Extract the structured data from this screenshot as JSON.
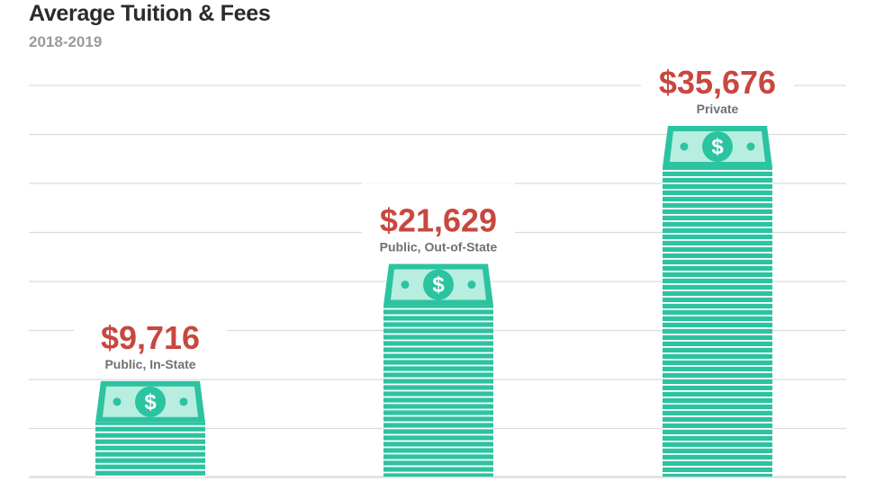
{
  "header": {
    "title": "Average Tuition & Fees",
    "subtitle": "2018-2019"
  },
  "icon": "dollar-bill-stack-icon",
  "colors": {
    "bill_fill": "#2cc3a0",
    "bill_stripe": "#ffffff",
    "bill_face": "#b8eedf",
    "value_text": "#c8473f",
    "category_text": "#707070",
    "gridline": "#dcdcdc"
  },
  "chart_data": {
    "type": "bar",
    "title": "Average Tuition & Fees",
    "subtitle": "2018-2019",
    "categories": [
      "Public, In-State",
      "Public, Out-of-State",
      "Private"
    ],
    "values": [
      9716,
      21629,
      35676
    ],
    "value_labels": [
      "$9,716",
      "$21,629",
      "$35,676"
    ],
    "xlabel": "",
    "ylabel": "",
    "ylim": [
      0,
      40000
    ],
    "grid": true,
    "legend": "none"
  }
}
